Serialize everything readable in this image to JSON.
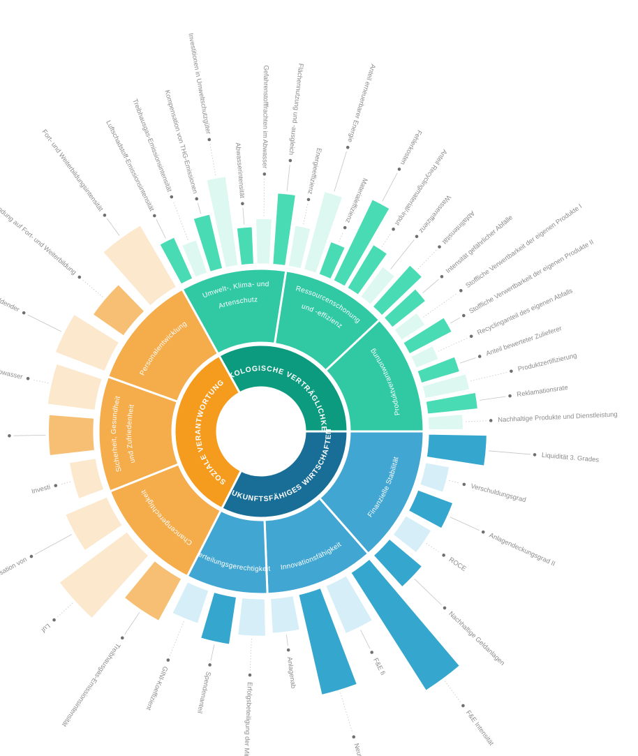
{
  "chart_data": {
    "type": "sunburst",
    "title": "",
    "description": "Radial sustainability-indicator cockpit: 3 categories, 9 subcategories, indicator bars (lengths estimated 0-1 of max bar extent; no numeric axis shown in image)",
    "legend_position": "none",
    "grid": false,
    "colors_text_labels": "#8c8c8c",
    "sections": [
      {
        "label": "ÖKOLOGISCHE VERTRÄGLICHKEIT",
        "angle_start": 331,
        "angle_end": 450,
        "colors": {
          "inner": "#0C9B7E",
          "mid": "#30C9A4",
          "bar_dark": "#49DBB4",
          "bar_light": "#DCF8F0"
        },
        "subcategories": [
          {
            "label": "Umwelt-, Klima- und Artenschutz",
            "label_lines": [
              "Umwelt-, Klima- und",
              "Artenschutz"
            ],
            "indicators": [
              {
                "label": "Luftschadstoff-Emissionsintensität",
                "value": 0.28,
                "shade": "dark"
              },
              {
                "label": "Treibhausgas-Emissionsintensität",
                "value": 0.2,
                "shade": "light"
              },
              {
                "label": "Kompensation von THG-Emissionen",
                "value": 0.36,
                "shade": "dark"
              },
              {
                "label": "Investitionen in Umweltschutzgüter",
                "value": 0.62,
                "shade": "light"
              },
              {
                "label": "Abwasserintensität",
                "value": 0.22,
                "shade": "dark"
              },
              {
                "label": "Gefahrenstofffrachten im Abwasser",
                "value": 0.28,
                "shade": "light"
              },
              {
                "label": "Flächennutzung und -ausgleich",
                "value": 0.48,
                "shade": "dark"
              }
            ]
          },
          {
            "label": "Ressourcenschonung und -effizienz",
            "label_lines": [
              "Ressourcenschonung",
              "und -effizienz"
            ],
            "indicators": [
              {
                "label": "Energieeffizienz",
                "value": 0.25,
                "shade": "light"
              },
              {
                "label": "Anteil erneuerbarer Energie",
                "value": 0.55,
                "shade": "light"
              },
              {
                "label": "Materialeffizienz",
                "value": 0.2,
                "shade": "dark"
              },
              {
                "label": "Fehlerkosten",
                "value": 0.62,
                "shade": "dark"
              },
              {
                "label": "Anteil Recyclingmaterial/-input",
                "value": 0.32,
                "shade": "dark"
              },
              {
                "label": "Wassereffizienz",
                "value": 0.22,
                "shade": "light"
              },
              {
                "label": "Abfallintensität",
                "value": 0.36,
                "shade": "dark"
              }
            ]
          },
          {
            "label": "Produktverantwortung",
            "label_lines": [
              "Produktverantwortung"
            ],
            "indicators": [
              {
                "label": "Intensität gefährlicher Abfälle",
                "value": 0.26,
                "shade": "dark"
              },
              {
                "label": "Stoffliche Verwertbarkeit der eigenen Produkte I",
                "value": 0.15,
                "shade": "light"
              },
              {
                "label": "Stoffliche Verwertbarkeit der eigenen Produkte II",
                "value": 0.3,
                "shade": "dark"
              },
              {
                "label": "Recyclinganteil des eigenen Abfalls",
                "value": 0.12,
                "shade": "light"
              },
              {
                "label": "Anteil bewerteter Zulieferer",
                "value": 0.24,
                "shade": "dark"
              },
              {
                "label": "Produktzertifizierung",
                "value": 0.28,
                "shade": "light"
              },
              {
                "label": "Reklamationsrate",
                "value": 0.32,
                "shade": "dark"
              },
              {
                "label": "Nachhaltige Produkte und Dienstleistung",
                "value": 0.2,
                "shade": "light"
              }
            ]
          }
        ]
      },
      {
        "label": "ZUKUNFTSFÄHIGES WIRTSCHAFTEN",
        "angle_start": 90,
        "angle_end": 207,
        "colors": {
          "inner": "#186E96",
          "mid": "#42A6D3",
          "bar_dark": "#35A7CF",
          "bar_light": "#D5EEF8"
        },
        "subcategories": [
          {
            "label": "Finanzielle Stabilität",
            "label_lines": [
              "Finanzielle Stabilität"
            ],
            "indicators": [
              {
                "label": "Liquidität 3. Grades",
                "value": 0.38,
                "shade": "dark"
              },
              {
                "label": "Verschuldungsgrad",
                "value": 0.12,
                "shade": "light"
              },
              {
                "label": "Anlagendeckungsgrad II",
                "value": 0.22,
                "shade": "dark"
              },
              {
                "label": "ROCE",
                "value": 0.16,
                "shade": "light"
              },
              {
                "label": "Nachhaltige Geldanlagen",
                "value": 0.26,
                "shade": "dark"
              }
            ]
          },
          {
            "label": "Innovationsfähigkeit",
            "label_lines": [
              "Innovationsfähigkeit"
            ],
            "indicators": [
              {
                "label": "F&E Intensität",
                "value": 1.0,
                "shade": "dark"
              },
              {
                "label": "F&E fi",
                "value": 0.33,
                "shade": "light"
              },
              {
                "label": "Neuumsatzanteil",
                "value": 0.72,
                "shade": "dark"
              },
              {
                "label": "Anlagenab",
                "value": 0.2,
                "shade": "light"
              }
            ]
          },
          {
            "label": "Verteilungsgerechtigkeit",
            "label_lines": [
              "Verteilungsgerechtigkeit"
            ],
            "indicators": [
              {
                "label": "Erfolgsbeteiligung der Mitarb",
                "value": 0.22,
                "shade": "light"
              },
              {
                "label": "Spendenanteil",
                "value": 0.3,
                "shade": "dark"
              },
              {
                "label": "GINI-Koeffizient",
                "value": 0.2,
                "shade": "light"
              }
            ]
          }
        ]
      },
      {
        "label": "SOZIALE VERANTWORTUNG",
        "angle_start": 207,
        "angle_end": 331,
        "colors": {
          "inner": "#F59B1E",
          "mid": "#F5AC4B",
          "bar_dark": "#F7BF74",
          "bar_light": "#FBE8CD"
        },
        "subcategories": [
          {
            "label": "Chancengerechtigkeit",
            "label_lines": [
              "Chancengerechtigkeit"
            ],
            "indicators": [
              {
                "label": "Treibhausgas-Emissionsintensität",
                "value": 0.3,
                "shade": "dark"
              },
              {
                "label": "Luf",
                "value": 0.58,
                "shade": "light"
              },
              {
                "label": "Kompensation von",
                "value": 0.28,
                "shade": "light"
              }
            ]
          },
          {
            "label": "Sicherheit, Gesundheit und Zufriedenheit",
            "label_lines": [
              "Sicherheit, Gesundheit",
              "und Zufriedenheit"
            ],
            "indicators": [
              {
                "label": "Investi",
                "value": 0.14,
                "shade": "light"
              },
              {
                "label": "",
                "value": 0.28,
                "shade": "dark"
              },
              {
                "label": "n Abwasser",
                "value": 0.3,
                "shade": "light"
              }
            ]
          },
          {
            "label": "Personalentwicklung",
            "label_lines": [
              "Personalentwicklung"
            ],
            "indicators": [
              {
                "label": "uszubildender",
                "value": 0.34,
                "shade": "light"
              },
              {
                "label": "wendung auf Fort- und Weiterbildung",
                "value": 0.22,
                "shade": "dark"
              },
              {
                "label": "Fort- und Weiterbildungsintensität",
                "value": 0.48,
                "shade": "light"
              }
            ]
          }
        ]
      }
    ],
    "geometry_note": "bars start at inner radius of bar ring; value 1.0 corresponds to the longest bar (F&E Intensität)"
  }
}
